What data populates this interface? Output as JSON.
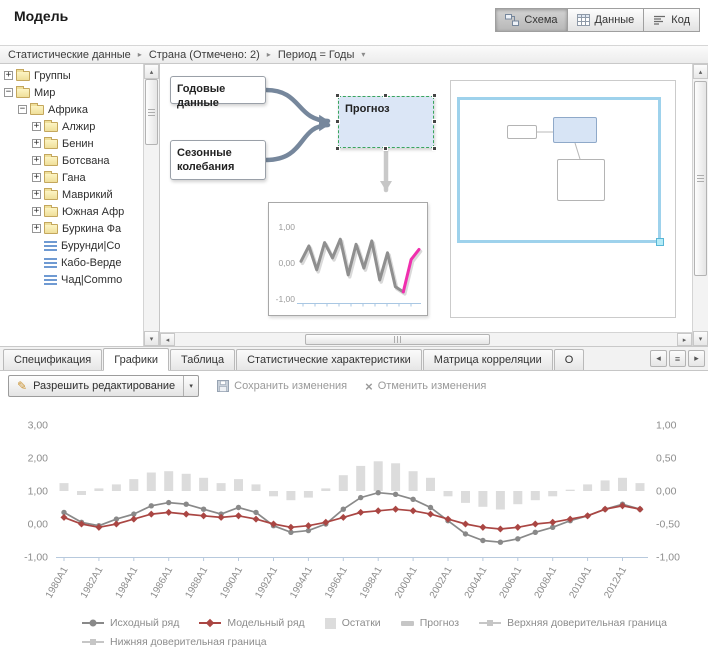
{
  "header": {
    "title": "Модель",
    "view_buttons": [
      {
        "id": "schema",
        "label": "Схема",
        "icon": "schema-icon",
        "active": true
      },
      {
        "id": "data",
        "label": "Данные",
        "icon": "table-icon",
        "active": false
      },
      {
        "id": "code",
        "label": "Код",
        "icon": "code-icon",
        "active": false
      }
    ]
  },
  "breadcrumb": {
    "items": [
      "Статистические данные",
      "Страна (Отмечено: 2)",
      "Период = Годы"
    ]
  },
  "tree": {
    "items": [
      {
        "label": "Группы",
        "level": 0,
        "expander": "+",
        "icon": "folder"
      },
      {
        "label": "Мир",
        "level": 0,
        "expander": "-",
        "icon": "folder"
      },
      {
        "label": "Африка",
        "level": 1,
        "expander": "-",
        "icon": "folder"
      },
      {
        "label": "Алжир",
        "level": 2,
        "expander": "+",
        "icon": "folder"
      },
      {
        "label": "Бенин",
        "level": 2,
        "expander": "+",
        "icon": "folder"
      },
      {
        "label": "Ботсвана",
        "level": 2,
        "expander": "+",
        "icon": "folder"
      },
      {
        "label": "Гана",
        "level": 2,
        "expander": "+",
        "icon": "folder"
      },
      {
        "label": "Маврикий",
        "level": 2,
        "expander": "+",
        "icon": "folder"
      },
      {
        "label": "Южная Афр",
        "level": 2,
        "expander": "+",
        "icon": "folder"
      },
      {
        "label": "Буркина Фа",
        "level": 2,
        "expander": "+",
        "icon": "folder"
      },
      {
        "label": "Бурунди|Co",
        "level": 2,
        "expander": "",
        "icon": "series"
      },
      {
        "label": "Кабо-Верде",
        "level": 2,
        "expander": "",
        "icon": "series"
      },
      {
        "label": "Чад|Commo",
        "level": 2,
        "expander": "",
        "icon": "series"
      }
    ]
  },
  "diagram": {
    "node_annual": "Годовые данные",
    "node_seasonal": "Сезонные колебания",
    "node_forecast": "Прогноз",
    "preview": {
      "yticks": [
        "1,00",
        "0,00",
        "-1,00"
      ],
      "values": [
        0.05,
        0.5,
        -0.2,
        0.6,
        0.15,
        0.7,
        -0.35,
        0.55,
        -0.15,
        0.65,
        -0.5,
        0.3,
        -0.7,
        -0.85,
        0.1,
        0.4
      ],
      "highlight_points": 3,
      "highlight_color": "#f02fae"
    }
  },
  "tabs": {
    "items": [
      {
        "label": "Спецификация",
        "active": false
      },
      {
        "label": "Графики",
        "active": true
      },
      {
        "label": "Таблица",
        "active": false
      },
      {
        "label": "Статистические характеристики",
        "active": false
      },
      {
        "label": "Матрица корреляции",
        "active": false
      },
      {
        "label": "О",
        "active": false
      }
    ],
    "controls": [
      {
        "icon": "chevron-left-icon"
      },
      {
        "icon": "tab-menu-icon"
      },
      {
        "icon": "chevron-right-icon"
      }
    ]
  },
  "toolbar": {
    "edit_button": "Разрешить редактирование",
    "save_button": "Сохранить изменения",
    "cancel_button": "Отменить изменения"
  },
  "chart_data": {
    "type": "bar",
    "note": "combo chart: gray line + red line on left axis, gray residual bars on right axis",
    "x": [
      1980,
      1981,
      1982,
      1983,
      1984,
      1985,
      1986,
      1987,
      1988,
      1989,
      1990,
      1991,
      1992,
      1993,
      1994,
      1995,
      1996,
      1997,
      1998,
      1999,
      2000,
      2001,
      2002,
      2003,
      2004,
      2005,
      2006,
      2007,
      2008,
      2009,
      2010,
      2011,
      2012,
      2013
    ],
    "x_tick_labels": [
      "1980A1",
      "1982A1",
      "1984A1",
      "1986A1",
      "1988A1",
      "1990A1",
      "1992A1",
      "1994A1",
      "1996A1",
      "1998A1",
      "2000A1",
      "2002A1",
      "2004A1",
      "2006A1",
      "2008A1",
      "2010A1",
      "2012A1"
    ],
    "left_axis": {
      "min": -1,
      "max": 3,
      "ticks": [
        "3,00",
        "2,00",
        "1,00",
        "0,00",
        "-1,00"
      ]
    },
    "right_axis": {
      "min": -1,
      "max": 1,
      "ticks": [
        "1,00",
        "0,50",
        "0,00",
        "-0,50",
        "-1,00"
      ]
    },
    "series": [
      {
        "key": "residuals",
        "name": "Остатки",
        "type": "bar",
        "axis": "right",
        "color": "#dcdcdc",
        "values": [
          0.12,
          -0.06,
          0.04,
          0.1,
          0.18,
          0.28,
          0.3,
          0.26,
          0.2,
          0.12,
          0.18,
          0.1,
          -0.08,
          -0.14,
          -0.1,
          0.04,
          0.24,
          0.38,
          0.45,
          0.42,
          0.3,
          0.2,
          -0.08,
          -0.18,
          -0.24,
          -0.28,
          -0.2,
          -0.14,
          -0.08,
          0.02,
          0.1,
          0.16,
          0.2,
          0.12
        ]
      },
      {
        "key": "original",
        "name": "Исходный ряд",
        "type": "line",
        "axis": "left",
        "marker": "circle",
        "color": "#898989",
        "values": [
          0.35,
          0.05,
          -0.05,
          0.15,
          0.3,
          0.55,
          0.65,
          0.6,
          0.45,
          0.3,
          0.5,
          0.35,
          -0.05,
          -0.25,
          -0.2,
          0.0,
          0.45,
          0.8,
          0.95,
          0.9,
          0.75,
          0.5,
          0.1,
          -0.3,
          -0.5,
          -0.55,
          -0.45,
          -0.25,
          -0.1,
          0.1,
          0.25,
          0.45,
          0.6,
          0.45
        ]
      },
      {
        "key": "model",
        "name": "Модельный ряд",
        "type": "line",
        "axis": "left",
        "marker": "diamond",
        "color": "#aa4643",
        "values": [
          0.2,
          0.0,
          -0.1,
          0.0,
          0.15,
          0.3,
          0.35,
          0.3,
          0.25,
          0.2,
          0.25,
          0.15,
          0.0,
          -0.1,
          -0.05,
          0.05,
          0.2,
          0.35,
          0.4,
          0.45,
          0.4,
          0.3,
          0.15,
          0.0,
          -0.1,
          -0.15,
          -0.1,
          0.0,
          0.05,
          0.15,
          0.25,
          0.45,
          0.55,
          0.45
        ]
      }
    ]
  },
  "legend": {
    "items": [
      {
        "label": "Исходный ряд",
        "marker": "circle-line",
        "color": "#898989"
      },
      {
        "label": "Модельный ряд",
        "marker": "diamond-line",
        "color": "#aa4643"
      },
      {
        "label": "Остатки",
        "marker": "square",
        "color": "#dcdcdc"
      },
      {
        "label": "Прогноз",
        "marker": "dash",
        "color": "#c6c6c6"
      },
      {
        "label": "Верхняя доверительная граница",
        "marker": "dash-line",
        "color": "#c6c6c6"
      },
      {
        "label": "Нижняя доверительная граница",
        "marker": "dash-line",
        "color": "#c6c6c6"
      }
    ]
  },
  "colors": {
    "forecast_fill": "#dbe6f6",
    "selection_green": "#3aa55d",
    "connector_blue": "#76879c",
    "minimap_viewport": "#9ed2ec",
    "highlight_magenta": "#f02fae",
    "original_series": "#898989",
    "model_series": "#aa4643",
    "residuals_bar": "#dcdcdc"
  },
  "icons": {
    "view": [
      "schema-icon",
      "table-icon",
      "code-icon"
    ],
    "breadcrumb": [
      "arrow-right-icon",
      "dropdown-icon"
    ],
    "tree": [
      "expand-icon",
      "collapse-icon",
      "folder-icon",
      "series-icon"
    ],
    "tabs": [
      "chevron-left-icon",
      "tab-menu-icon",
      "chevron-right-icon"
    ],
    "toolbar": [
      "pencil-icon",
      "dropdown-icon",
      "save-icon",
      "cancel-icon"
    ],
    "scrollbar": [
      "scroll-up-icon",
      "scroll-down-icon",
      "scroll-left-icon",
      "scroll-right-icon"
    ]
  }
}
